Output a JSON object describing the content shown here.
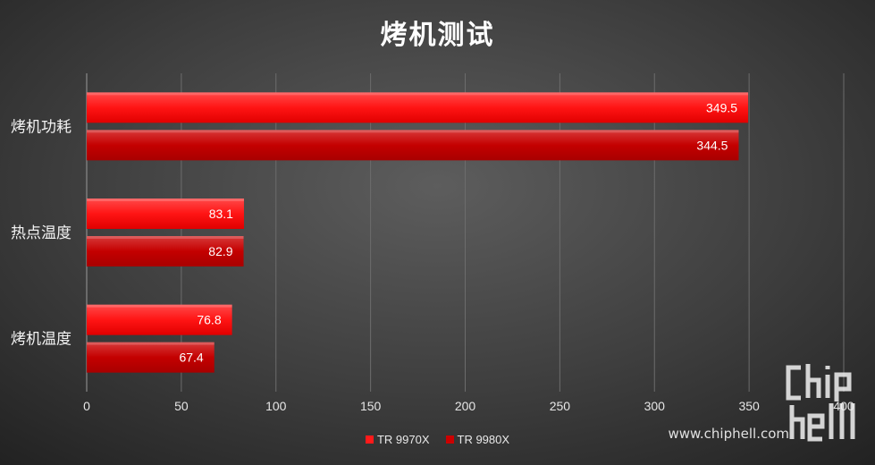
{
  "chart_data": {
    "type": "bar",
    "orientation": "horizontal",
    "title": "烤机测试",
    "categories": [
      "烤机功耗",
      "热点温度",
      "烤机温度"
    ],
    "series": [
      {
        "name": "TR 9970X",
        "values": [
          349.5,
          83.1,
          76.8
        ],
        "color": "#ff1a1a"
      },
      {
        "name": "TR 9980X",
        "values": [
          344.5,
          82.9,
          67.4
        ],
        "color": "#cc0000"
      }
    ],
    "xticks": [
      "0",
      "50",
      "100",
      "150",
      "200",
      "250",
      "300",
      "350",
      "400"
    ],
    "xlim": [
      0,
      400
    ],
    "grid": true,
    "legend_position": "bottom"
  },
  "watermark": {
    "url": "www.chiphell.com",
    "logo_text": "chiphell"
  }
}
